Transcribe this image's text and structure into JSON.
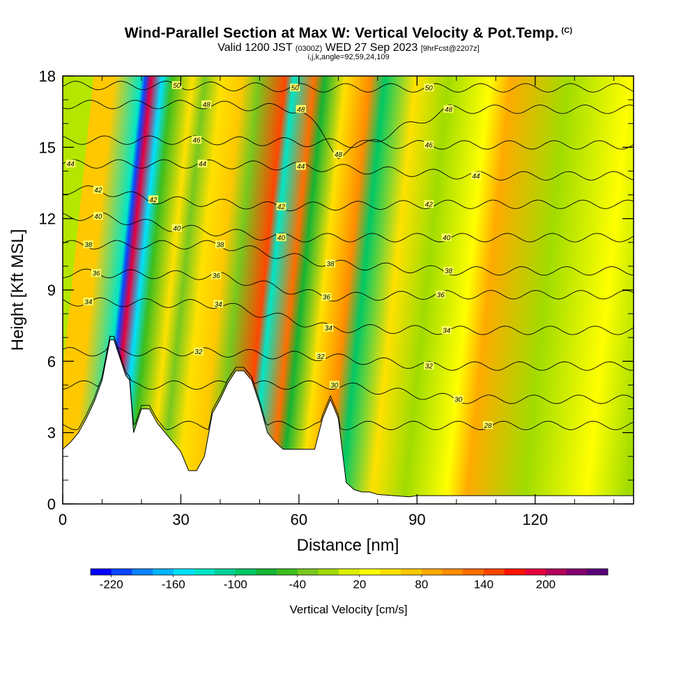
{
  "title": {
    "main": "Wind-Parallel Section at Max W: Vertical Velocity & Pot.Temp.",
    "copyright": "(C)",
    "valid_prefix": "Valid 1200 JST",
    "valid_utc": "(0300Z)",
    "valid_date": "WED 27 Sep 2023",
    "forecast": "[9hrFcst@2207z]",
    "ijk": "i,j,k,angle=92,59,24,109"
  },
  "chart_data": {
    "type": "heatmap",
    "xlabel": "Distance [nm]",
    "ylabel": "Height [Kft MSL]",
    "xlim": [
      0,
      145
    ],
    "ylim": [
      0,
      18
    ],
    "x_ticks": [
      "0",
      "30",
      "60",
      "90",
      "120"
    ],
    "x_tick_values": [
      0,
      30,
      60,
      90,
      120
    ],
    "y_ticks": [
      "0",
      "3",
      "6",
      "9",
      "12",
      "15",
      "18"
    ],
    "y_tick_values": [
      0,
      3,
      6,
      9,
      12,
      15,
      18
    ],
    "grid": false,
    "terrain_profile_kft": {
      "x": [
        0,
        2,
        4,
        6,
        8,
        10,
        12,
        13,
        14,
        16,
        17,
        18,
        20,
        22,
        24,
        26,
        28,
        30,
        32,
        34,
        36,
        38,
        40,
        42,
        44,
        46,
        48,
        50,
        52,
        54,
        56,
        58,
        60,
        62,
        64,
        66,
        68,
        70,
        72,
        74,
        76,
        78,
        80,
        84,
        88,
        90,
        95,
        145
      ],
      "height": [
        2.3,
        2.6,
        3.0,
        3.6,
        4.3,
        5.2,
        6.9,
        6.9,
        6.4,
        5.4,
        5.2,
        3.0,
        4.0,
        4.0,
        3.4,
        3.0,
        2.6,
        2.2,
        1.4,
        1.4,
        2.0,
        3.8,
        4.4,
        5.1,
        5.6,
        5.6,
        5.2,
        4.2,
        3.0,
        2.6,
        2.3,
        2.3,
        2.3,
        2.3,
        2.3,
        3.6,
        4.4,
        3.6,
        0.9,
        0.6,
        0.5,
        0.5,
        0.4,
        0.35,
        0.3,
        0.35,
        0.35,
        0.35
      ]
    },
    "colorbar": {
      "label": "Vertical Velocity [cm/s]",
      "tick_labels": [
        "-220",
        "-160",
        "-100",
        "-40",
        "20",
        "80",
        "140",
        "200"
      ],
      "levels": [
        -240,
        -220,
        -200,
        -180,
        -160,
        -140,
        -120,
        -100,
        -80,
        -60,
        -40,
        -20,
        0,
        20,
        40,
        60,
        80,
        100,
        120,
        140,
        160,
        180,
        200,
        220,
        240
      ],
      "colors": [
        "#0000ff",
        "#0a46ff",
        "#0a82ff",
        "#00b4ff",
        "#00e1ff",
        "#00e6c8",
        "#00d296",
        "#00c864",
        "#14b432",
        "#3cbe1e",
        "#78c81e",
        "#a0dc00",
        "#dcf000",
        "#ffff00",
        "#ffe100",
        "#ffc800",
        "#ffaa00",
        "#ff8c00",
        "#ff6e00",
        "#ff4600",
        "#ff1400",
        "#e6003c",
        "#b4005a",
        "#82006e",
        "#5a0078"
      ]
    },
    "vertical_velocity_bands": [
      {
        "x_center": 5,
        "w_cm_s": 60
      },
      {
        "x_center": 11.5,
        "w_cm_s": -140
      },
      {
        "x_center": 12.5,
        "w_cm_s": -220
      },
      {
        "x_center": 14,
        "w_cm_s": 190
      },
      {
        "x_center": 16.5,
        "w_cm_s": -150
      },
      {
        "x_center": 19,
        "w_cm_s": -60
      },
      {
        "x_center": 24,
        "w_cm_s": 40
      },
      {
        "x_center": 27,
        "w_cm_s": -40
      },
      {
        "x_center": 31,
        "w_cm_s": 40
      },
      {
        "x_center": 36,
        "w_cm_s": 60
      },
      {
        "x_center": 40,
        "w_cm_s": -40
      },
      {
        "x_center": 46.5,
        "w_cm_s": 140
      },
      {
        "x_center": 48.5,
        "w_cm_s": -140
      },
      {
        "x_center": 53.5,
        "w_cm_s": 130
      },
      {
        "x_center": 56,
        "w_cm_s": -80
      },
      {
        "x_center": 61,
        "w_cm_s": 40
      },
      {
        "x_center": 67,
        "w_cm_s": 100
      },
      {
        "x_center": 70.5,
        "w_cm_s": -90
      },
      {
        "x_center": 78,
        "w_cm_s": 40
      },
      {
        "x_center": 86,
        "w_cm_s": -20
      },
      {
        "x_center": 96,
        "w_cm_s": 20
      },
      {
        "x_center": 101,
        "w_cm_s": 80
      },
      {
        "x_center": 115,
        "w_cm_s": -20
      },
      {
        "x_center": 130,
        "w_cm_s": 20
      },
      {
        "x_center": 140,
        "w_cm_s": -20
      }
    ],
    "potential_temperature_contours_celsius": [
      28,
      30,
      32,
      34,
      36,
      38,
      40,
      42,
      44,
      46,
      48,
      50
    ],
    "contour_labels": [
      {
        "text": "50",
        "x": 29,
        "y": 17.6
      },
      {
        "text": "50",
        "x": 59,
        "y": 17.5
      },
      {
        "text": "50",
        "x": 93,
        "y": 17.5
      },
      {
        "text": "48",
        "x": 36.5,
        "y": 16.8
      },
      {
        "text": "48",
        "x": 60.5,
        "y": 16.6
      },
      {
        "text": "48",
        "x": 98,
        "y": 16.6
      },
      {
        "text": "48",
        "x": 70,
        "y": 14.7
      },
      {
        "text": "46",
        "x": 34,
        "y": 15.3
      },
      {
        "text": "46",
        "x": 93,
        "y": 15.1
      },
      {
        "text": "44",
        "x": 2,
        "y": 14.3
      },
      {
        "text": "44",
        "x": 35.5,
        "y": 14.3
      },
      {
        "text": "44",
        "x": 60.5,
        "y": 14.2
      },
      {
        "text": "44",
        "x": 105,
        "y": 13.8
      },
      {
        "text": "42",
        "x": 9,
        "y": 13.2
      },
      {
        "text": "42",
        "x": 23,
        "y": 12.8
      },
      {
        "text": "42",
        "x": 55.5,
        "y": 12.5
      },
      {
        "text": "42",
        "x": 93,
        "y": 12.6
      },
      {
        "text": "40",
        "x": 9,
        "y": 12.1
      },
      {
        "text": "40",
        "x": 29,
        "y": 11.6
      },
      {
        "text": "40",
        "x": 55.5,
        "y": 11.2
      },
      {
        "text": "40",
        "x": 97.5,
        "y": 11.2
      },
      {
        "text": "38",
        "x": 6.5,
        "y": 10.9
      },
      {
        "text": "38",
        "x": 40,
        "y": 10.9
      },
      {
        "text": "38",
        "x": 68,
        "y": 10.1
      },
      {
        "text": "38",
        "x": 98,
        "y": 9.8
      },
      {
        "text": "36",
        "x": 8.5,
        "y": 9.7
      },
      {
        "text": "36",
        "x": 39,
        "y": 9.6
      },
      {
        "text": "36",
        "x": 67,
        "y": 8.7
      },
      {
        "text": "36",
        "x": 96,
        "y": 8.8
      },
      {
        "text": "34",
        "x": 6.5,
        "y": 8.5
      },
      {
        "text": "34",
        "x": 39.5,
        "y": 8.4
      },
      {
        "text": "34",
        "x": 67.5,
        "y": 7.4
      },
      {
        "text": "34",
        "x": 97.5,
        "y": 7.3
      },
      {
        "text": "32",
        "x": 34.5,
        "y": 6.4
      },
      {
        "text": "32",
        "x": 65.5,
        "y": 6.2
      },
      {
        "text": "32",
        "x": 93,
        "y": 5.8
      },
      {
        "text": "30",
        "x": 69,
        "y": 5.0
      },
      {
        "text": "30",
        "x": 100.5,
        "y": 4.4
      },
      {
        "text": "28",
        "x": 108,
        "y": 3.3
      }
    ]
  }
}
